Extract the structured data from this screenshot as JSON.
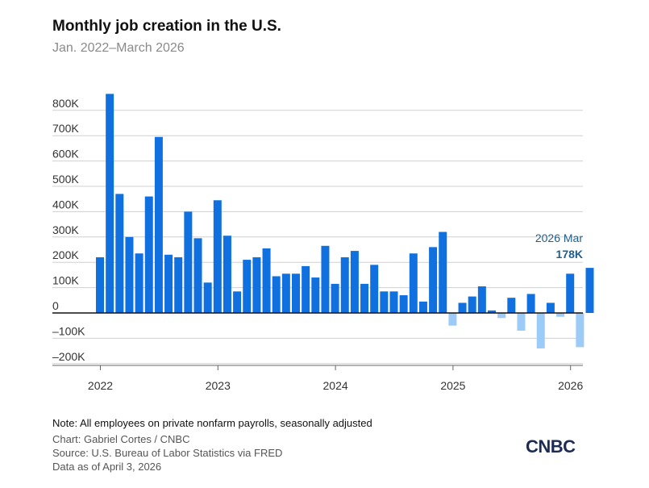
{
  "title": "Monthly job creation in the U.S.",
  "subtitle": "Jan. 2022–March 2026",
  "note": "Note: All employees on private nonfarm payrolls, seasonally adjusted",
  "credit_chart": "Chart: Gabriel Cortes / CNBC",
  "credit_source": "Source: U.S. Bureau of Labor Statistics via FRED",
  "credit_date": "Data as of April 3, 2026",
  "logo_text": "CNBC",
  "colors": {
    "positive": "#1070e0",
    "negative": "#9ccbf7",
    "grid": "#d0d0d0",
    "baseline": "#111111",
    "annotation": "#1f5f8b"
  },
  "chart_data": {
    "type": "bar",
    "title": "Monthly job creation in the U.S.",
    "subtitle": "Jan. 2022–March 2026",
    "xlabel": "",
    "ylabel": "",
    "unit": "thousands of jobs",
    "ylim": [
      -220,
      880
    ],
    "y_ticks": [
      -200,
      -100,
      0,
      100,
      200,
      300,
      400,
      500,
      600,
      700,
      800
    ],
    "y_tick_labels": [
      "–200K",
      "–100K",
      "0",
      "100K",
      "200K",
      "300K",
      "400K",
      "500K",
      "600K",
      "700K",
      "800K"
    ],
    "x_tick_labels": [
      "2022",
      "2023",
      "2024",
      "2025",
      "2026"
    ],
    "grid": true,
    "categories": [
      "2022-01",
      "2022-02",
      "2022-03",
      "2022-04",
      "2022-05",
      "2022-06",
      "2022-07",
      "2022-08",
      "2022-09",
      "2022-10",
      "2022-11",
      "2022-12",
      "2023-01",
      "2023-02",
      "2023-03",
      "2023-04",
      "2023-05",
      "2023-06",
      "2023-07",
      "2023-08",
      "2023-09",
      "2023-10",
      "2023-11",
      "2023-12",
      "2024-01",
      "2024-02",
      "2024-03",
      "2024-04",
      "2024-05",
      "2024-06",
      "2024-07",
      "2024-08",
      "2024-09",
      "2024-10",
      "2024-11",
      "2024-12",
      "2025-01",
      "2025-02",
      "2025-03",
      "2025-04",
      "2025-05",
      "2025-06",
      "2025-07",
      "2025-08",
      "2025-09",
      "2025-10",
      "2025-11",
      "2025-12",
      "2026-01",
      "2026-02",
      "2026-03"
    ],
    "values": [
      220,
      865,
      470,
      300,
      235,
      460,
      695,
      230,
      220,
      400,
      295,
      120,
      445,
      305,
      85,
      210,
      220,
      255,
      145,
      155,
      155,
      185,
      140,
      265,
      115,
      220,
      245,
      115,
      190,
      85,
      85,
      70,
      235,
      45,
      260,
      320,
      -50,
      40,
      65,
      105,
      10,
      -20,
      60,
      -70,
      75,
      -140,
      40,
      -15,
      155,
      -135,
      178
    ],
    "annotation": {
      "date_label": "2026 Mar",
      "value_label": "178K"
    }
  }
}
